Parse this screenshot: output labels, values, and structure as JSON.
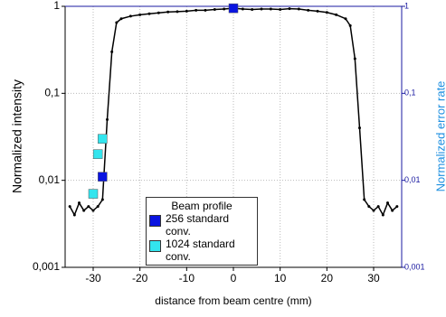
{
  "chart_data": {
    "type": "scatter",
    "xlabel": "distance from beam centre (mm)",
    "ylabel": "Normalized intensity",
    "y2label": "Normalized error rate",
    "legend_title": "Beam profile",
    "xlim": [
      -36,
      36
    ],
    "xticks": [
      -30,
      -20,
      -10,
      0,
      10,
      20,
      30
    ],
    "ylim": [
      0.001,
      1
    ],
    "log_y": true,
    "yticks": [
      {
        "value": 0.001,
        "label": "0,001"
      },
      {
        "value": 0.01,
        "label": "0,01"
      },
      {
        "value": 0.1,
        "label": "0,1"
      },
      1
    ],
    "y2lim": [
      0.001,
      1
    ],
    "y2ticks": [
      {
        "value": 0.001,
        "label": "0,001"
      },
      {
        "value": 0.01,
        "label": "0,01"
      },
      {
        "value": 0.1,
        "label": "0,1"
      },
      1
    ],
    "grid": true,
    "profile": {
      "color": "#000000",
      "x": [
        -35,
        -34,
        -33,
        -32,
        -31,
        -30,
        -29,
        -28,
        -27,
        -26,
        -25,
        -24,
        -22,
        -20,
        -18,
        -16,
        -14,
        -12,
        -10,
        -8,
        -6,
        -4,
        -2,
        0,
        2,
        4,
        6,
        8,
        10,
        12,
        14,
        16,
        18,
        20,
        22,
        24,
        25,
        26,
        27,
        28,
        29,
        30,
        31,
        32,
        33,
        34,
        35
      ],
      "values": [
        0.005,
        0.004,
        0.0055,
        0.0045,
        0.005,
        0.0045,
        0.005,
        0.006,
        0.05,
        0.3,
        0.65,
        0.72,
        0.77,
        0.8,
        0.82,
        0.84,
        0.86,
        0.87,
        0.88,
        0.9,
        0.9,
        0.92,
        0.93,
        0.95,
        0.93,
        0.92,
        0.93,
        0.93,
        0.92,
        0.94,
        0.93,
        0.9,
        0.88,
        0.85,
        0.8,
        0.72,
        0.6,
        0.25,
        0.04,
        0.006,
        0.005,
        0.0045,
        0.005,
        0.004,
        0.0055,
        0.0045,
        0.005
      ]
    },
    "series": [
      {
        "name": "256 standard conv.",
        "color": "#0a14e0",
        "x": [
          -28,
          0
        ],
        "values": [
          0.011,
          0.95
        ]
      },
      {
        "name": "1024 standard conv.",
        "color": "#33e5ee",
        "x": [
          -30,
          -29,
          -28
        ],
        "values": [
          0.007,
          0.02,
          0.03
        ]
      }
    ]
  }
}
